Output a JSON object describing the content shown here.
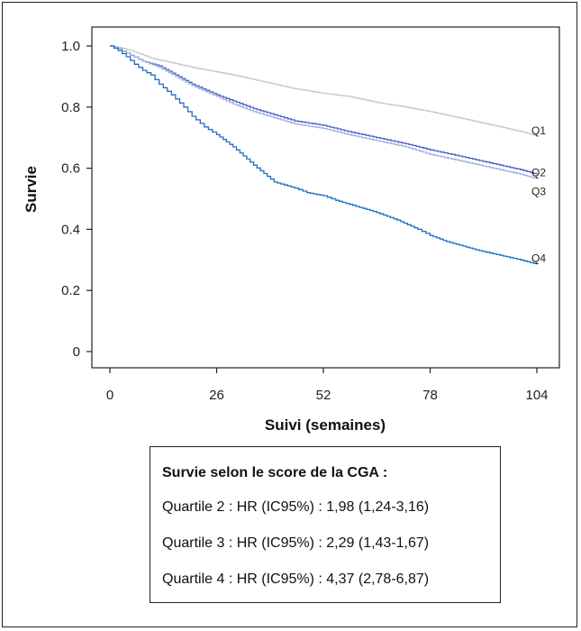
{
  "chart_data": {
    "type": "line",
    "xlabel": "Suivi (semaines)",
    "ylabel": "Survie",
    "xlim": [
      0,
      104
    ],
    "ylim": [
      0,
      1.0
    ],
    "xticks": [
      "0",
      "26",
      "52",
      "78",
      "104"
    ],
    "yticks": [
      "0",
      "0.2",
      "0.4",
      "0.6",
      "0.8",
      "1.0"
    ],
    "grid": false,
    "series": [
      {
        "name": "Q1",
        "color": "#c8c8c8",
        "x": [
          0,
          2,
          5,
          10,
          15,
          20,
          26,
          30,
          35,
          40,
          45,
          52,
          58,
          65,
          72,
          78,
          85,
          90,
          95,
          100,
          104
        ],
        "y": [
          1.0,
          0.995,
          0.985,
          0.96,
          0.945,
          0.93,
          0.915,
          0.905,
          0.89,
          0.875,
          0.86,
          0.845,
          0.835,
          0.815,
          0.8,
          0.785,
          0.765,
          0.75,
          0.735,
          0.72,
          0.705
        ]
      },
      {
        "name": "Q2",
        "color": "#4a5fc0",
        "x": [
          0,
          2,
          5,
          8,
          12,
          16,
          20,
          26,
          30,
          35,
          40,
          45,
          52,
          58,
          65,
          72,
          78,
          85,
          90,
          95,
          100,
          104
        ],
        "y": [
          1.0,
          0.99,
          0.97,
          0.95,
          0.935,
          0.905,
          0.875,
          0.84,
          0.82,
          0.795,
          0.775,
          0.755,
          0.74,
          0.72,
          0.7,
          0.68,
          0.66,
          0.64,
          0.625,
          0.61,
          0.595,
          0.58
        ]
      },
      {
        "name": "Q3",
        "color": "#9cb0e0",
        "x": [
          0,
          2,
          5,
          8,
          12,
          16,
          20,
          26,
          30,
          35,
          40,
          45,
          52,
          58,
          65,
          72,
          78,
          85,
          90,
          95,
          100,
          104
        ],
        "y": [
          1.0,
          0.99,
          0.97,
          0.95,
          0.93,
          0.9,
          0.87,
          0.835,
          0.81,
          0.785,
          0.765,
          0.745,
          0.73,
          0.71,
          0.69,
          0.67,
          0.645,
          0.625,
          0.61,
          0.595,
          0.58,
          0.565
        ]
      },
      {
        "name": "Q4",
        "color": "#1d6fc2",
        "x": [
          0,
          2,
          4,
          6,
          8,
          10,
          12,
          15,
          18,
          20,
          23,
          26,
          30,
          35,
          40,
          45,
          48,
          52,
          55,
          60,
          65,
          70,
          75,
          78,
          82,
          86,
          90,
          95,
          100,
          104
        ],
        "y": [
          1.0,
          0.985,
          0.965,
          0.94,
          0.92,
          0.905,
          0.875,
          0.84,
          0.8,
          0.77,
          0.735,
          0.71,
          0.67,
          0.61,
          0.555,
          0.535,
          0.52,
          0.51,
          0.495,
          0.475,
          0.455,
          0.43,
          0.4,
          0.38,
          0.36,
          0.345,
          0.33,
          0.315,
          0.3,
          0.285
        ]
      }
    ]
  },
  "legend": {
    "title": "Survie selon le score de la CGA :",
    "lines": [
      "Quartile 2 : HR (IC95%) : 1,98 (1,24-3,16)",
      "Quartile 3 : HR (IC95%) : 2,29 (1,43-1,67)",
      "Quartile 4 : HR (IC95%) : 4,37 (2,78-6,87)"
    ]
  }
}
